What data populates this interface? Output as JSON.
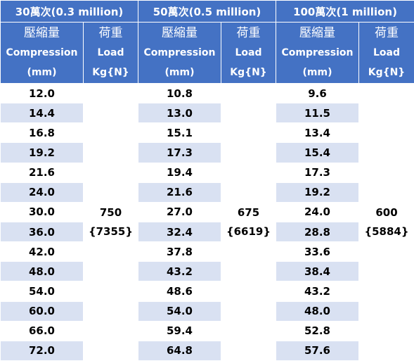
{
  "groups": [
    {
      "title": "30萬次(0.3 million)",
      "load": "750",
      "load_n": "{7355}",
      "compression": [
        "12.0",
        "14.4",
        "16.8",
        "19.2",
        "21.6",
        "24.0",
        "30.0",
        "36.0",
        "42.0",
        "48.0",
        "54.0",
        "60.0",
        "66.0",
        "72.0"
      ]
    },
    {
      "title": "50萬次(0.5 million)",
      "load": "675",
      "load_n": "{6619}",
      "compression": [
        "10.8",
        "13.0",
        "15.1",
        "17.3",
        "19.4",
        "21.6",
        "27.0",
        "32.4",
        "37.8",
        "43.2",
        "48.6",
        "54.0",
        "59.4",
        "64.8"
      ]
    },
    {
      "title": "100萬次(1 million)",
      "load": "600",
      "load_n": "{5884}",
      "compression": [
        "9.6",
        "11.5",
        "13.4",
        "15.4",
        "17.3",
        "19.2",
        "24.0",
        "28.8",
        "33.6",
        "38.4",
        "43.2",
        "48.0",
        "52.8",
        "57.6"
      ]
    }
  ],
  "headers": {
    "compression_zh": "壓縮量",
    "compression_en": "Compression",
    "compression_unit": "(mm)",
    "load_zh": "荷重",
    "load_en": "Load",
    "load_unit": "Kg{N}"
  }
}
